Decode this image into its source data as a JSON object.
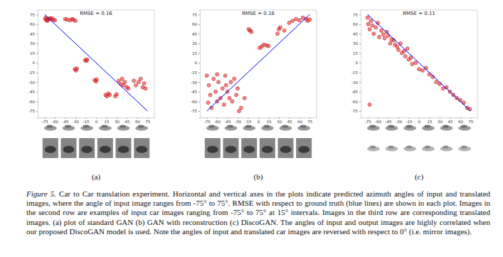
{
  "chart_data": [
    {
      "type": "scatter",
      "title": "RMSE = 0.16",
      "subtitle": "(a)",
      "xlim": [
        -85,
        85
      ],
      "ylim": [
        -85,
        82
      ],
      "xticks": [
        -75,
        -60,
        -45,
        -30,
        -15,
        0,
        15,
        30,
        45,
        60,
        75
      ],
      "yticks": [
        -75,
        -60,
        -45,
        -30,
        -15,
        0,
        15,
        30,
        45,
        60,
        75
      ],
      "grid": false,
      "series": [
        {
          "type": "scatter",
          "color": "#e8262a",
          "marker": "circle",
          "x": [
            -74,
            -72,
            -70,
            -73,
            -68,
            -66,
            -62,
            -60,
            -71,
            -65,
            -45,
            -42,
            -38,
            -35,
            -33,
            -30,
            -31,
            -29,
            -28,
            -16,
            -14,
            -13,
            -2,
            0,
            1,
            14,
            16,
            18,
            20,
            28,
            30,
            33,
            36,
            38,
            40,
            42,
            45,
            47,
            55,
            58,
            62,
            65,
            68,
            70,
            72
          ],
          "values": [
            68,
            66,
            67,
            70,
            69,
            68,
            67,
            66,
            65,
            69,
            68,
            67,
            66,
            68,
            67,
            65,
            -10,
            -12,
            -9,
            4,
            3,
            5,
            -27,
            -29,
            -26,
            -50,
            -52,
            -48,
            -50,
            -52,
            -49,
            -28,
            -33,
            -25,
            -35,
            -30,
            -38,
            -40,
            -28,
            -35,
            -30,
            -25,
            -38,
            -32,
            -40
          ]
        },
        {
          "type": "line",
          "color": "#0000ff",
          "line_style": "solid",
          "x": [
            -75,
            75
          ],
          "values": [
            75,
            -75
          ]
        }
      ]
    },
    {
      "type": "scatter",
      "title": "RMSE = 0.18",
      "subtitle": "(b)",
      "xlim": [
        -85,
        85
      ],
      "ylim": [
        -85,
        82
      ],
      "xticks": [
        -75,
        -60,
        -45,
        -30,
        -15,
        0,
        15,
        30,
        45,
        60,
        75
      ],
      "yticks": [
        -75,
        -60,
        -45,
        -30,
        -15,
        0,
        15,
        30,
        45,
        60,
        75
      ],
      "grid": false,
      "series": [
        {
          "type": "scatter",
          "color": "#e8262a",
          "marker": "circle",
          "x": [
            -75,
            -72,
            -70,
            -68,
            -65,
            -62,
            -60,
            -58,
            -55,
            -52,
            -50,
            -48,
            -45,
            -42,
            -40,
            -38,
            -35,
            -32,
            -30,
            -28,
            -25,
            -73,
            -60,
            -47,
            -20,
            -14,
            -12,
            -10,
            2,
            5,
            8,
            12,
            15,
            28,
            30,
            32,
            45,
            50,
            55,
            60,
            65,
            70,
            72,
            75,
            38
          ],
          "values": [
            -20,
            -35,
            -50,
            -70,
            -25,
            -45,
            -60,
            -30,
            -55,
            -40,
            -65,
            -20,
            -45,
            -55,
            -30,
            -60,
            -25,
            -50,
            -40,
            -75,
            -70,
            -62,
            -18,
            -35,
            -55,
            52,
            50,
            48,
            23,
            25,
            28,
            27,
            26,
            45,
            52,
            55,
            62,
            65,
            68,
            66,
            70,
            68,
            65,
            67,
            50
          ]
        },
        {
          "type": "line",
          "color": "#0000ff",
          "line_style": "solid",
          "x": [
            -75,
            75
          ],
          "values": [
            -75,
            75
          ]
        }
      ]
    },
    {
      "type": "scatter",
      "title": "RMSE = 0.11",
      "subtitle": "(c)",
      "xlim": [
        -85,
        85
      ],
      "ylim": [
        -85,
        82
      ],
      "xticks": [
        -75,
        -60,
        -45,
        -30,
        -15,
        0,
        15,
        30,
        45,
        60,
        75
      ],
      "yticks": [
        -75,
        -60,
        -45,
        -30,
        -15,
        0,
        15,
        30,
        45,
        60,
        75
      ],
      "grid": false,
      "series": [
        {
          "type": "scatter",
          "color": "#e8262a",
          "marker": "circle",
          "x": [
            -75,
            -74,
            -72,
            -70,
            -68,
            -66,
            -63,
            -60,
            -58,
            -55,
            -52,
            -50,
            -47,
            -45,
            -42,
            -40,
            -37,
            -35,
            -32,
            -30,
            -27,
            -25,
            -22,
            -20,
            -17,
            -15,
            -12,
            -10,
            -5,
            0,
            5,
            10,
            15,
            20,
            25,
            30,
            35,
            40,
            45,
            50,
            55,
            60,
            65,
            70,
            74,
            -72
          ],
          "values": [
            70,
            60,
            52,
            65,
            58,
            45,
            55,
            62,
            40,
            50,
            44,
            38,
            48,
            42,
            30,
            36,
            35,
            28,
            25,
            20,
            30,
            15,
            18,
            10,
            22,
            5,
            8,
            -2,
            0,
            -10,
            -12,
            -8,
            -18,
            -22,
            -30,
            -33,
            -40,
            -38,
            -45,
            -50,
            -55,
            -58,
            -62,
            -70,
            -72,
            -65
          ]
        },
        {
          "type": "line",
          "color": "#0000ff",
          "line_style": "solid",
          "x": [
            -75,
            75
          ],
          "values": [
            75,
            -75
          ]
        }
      ]
    }
  ],
  "caption": {
    "label": "Figure 5.",
    "text": "Car to Car translation experiment. Horizontal and vertical axes in the plots indicate predicted azimuth angles of input and translated images, where the angle of input image ranges from -75° to 75°. RMSE with respect to ground truth (blue lines) are shown in each plot. Images in the second row are examples of input car images ranging from -75° to 75° at 15° intervals. Images in the third row are corresponding translated images. (a) plot of standard GAN (b) GAN with reconstruction (c) DiscoGAN. The angles of input and output images are highly correlated when our proposed DiscoGAN model is used. Note the angles of input and translated car images are reversed with respect to 0° (i.e. mirror images)."
  }
}
